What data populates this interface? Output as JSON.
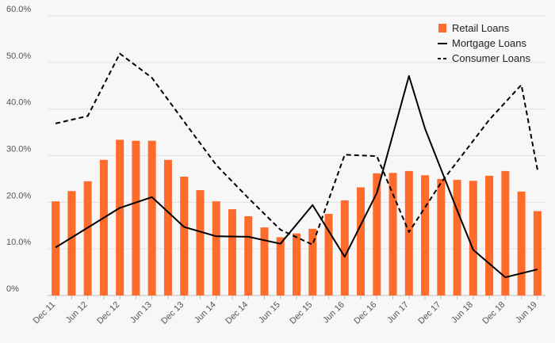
{
  "chart_data": {
    "type": "bar",
    "categories": [
      "Dec 11",
      "",
      "Jun 12",
      "",
      "Dec 12",
      "",
      "Jun 13",
      "",
      "Dec 13",
      "",
      "Jun 14",
      "",
      "Dec 14",
      "",
      "Jun 15",
      "",
      "Dec 15",
      "",
      "Jun 16",
      "",
      "Dec 16",
      "",
      "Jun 17",
      "",
      "Dec 17",
      "",
      "Jun 18",
      "",
      "Dec 18",
      "",
      "Jun 19"
    ],
    "ylim": [
      0,
      60
    ],
    "yticks": [
      "0%",
      "10.0%",
      "20.0%",
      "30.0%",
      "40.0%",
      "50.0%",
      "60.0%"
    ],
    "grid": true,
    "legend_position": "top-right",
    "series": [
      {
        "name": "Retail Loans",
        "kind": "bar",
        "color": "#ff6b2b",
        "values": [
          20.2,
          22.4,
          24.5,
          29.1,
          33.4,
          33.2,
          33.2,
          29.1,
          25.5,
          22.6,
          20.2,
          18.5,
          17.0,
          14.6,
          12.5,
          13.3,
          14.3,
          17.5,
          20.4,
          23.2,
          26.2,
          26.3,
          26.7,
          25.8,
          25.0,
          24.8,
          24.6,
          25.7,
          26.7,
          22.3,
          18.1
        ]
      },
      {
        "name": "Mortgage Loans",
        "kind": "line",
        "color": "#000000",
        "dash": "solid",
        "points": [
          [
            0,
            10.3
          ],
          [
            4,
            18.8
          ],
          [
            6,
            21.1
          ],
          [
            8,
            14.7
          ],
          [
            10,
            12.7
          ],
          [
            12,
            12.6
          ],
          [
            14,
            11.1
          ],
          [
            16,
            19.4
          ],
          [
            18,
            8.3
          ],
          [
            20,
            22.0
          ],
          [
            22,
            47.1
          ],
          [
            23,
            35.8
          ],
          [
            25,
            18.3
          ],
          [
            26,
            9.8
          ],
          [
            28,
            3.9
          ],
          [
            30,
            5.6
          ]
        ]
      },
      {
        "name": "Consumer Loans",
        "kind": "line",
        "color": "#000000",
        "dash": "dashed",
        "points": [
          [
            0,
            36.9
          ],
          [
            2,
            38.5
          ],
          [
            4,
            51.9
          ],
          [
            6,
            46.7
          ],
          [
            8,
            37.3
          ],
          [
            10,
            28.0
          ],
          [
            12,
            20.9
          ],
          [
            14,
            14.1
          ],
          [
            16,
            10.9
          ],
          [
            18,
            30.2
          ],
          [
            20,
            29.9
          ],
          [
            22,
            13.6
          ],
          [
            24,
            24.2
          ],
          [
            27,
            37.7
          ],
          [
            29,
            45.2
          ],
          [
            30,
            27.0
          ]
        ]
      }
    ]
  }
}
